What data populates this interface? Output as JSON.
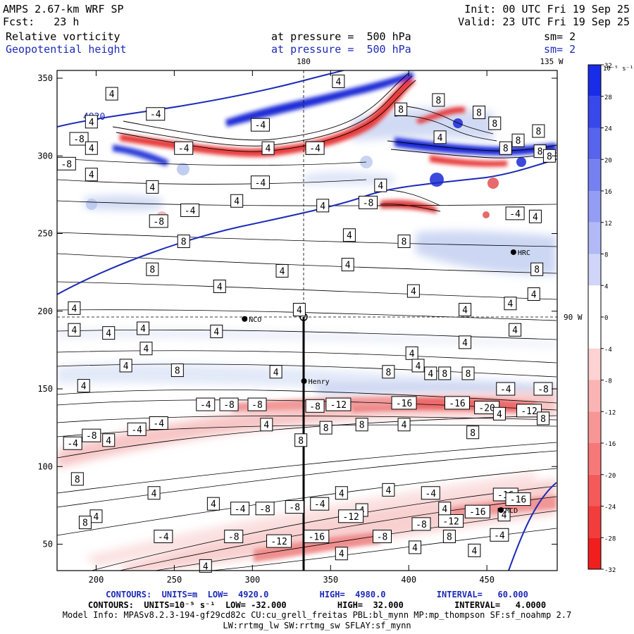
{
  "header": {
    "model": "AMPS 2.67-km WRF SP",
    "init": "Init: 00 UTC Fri 19 Sep 25",
    "fcst": "Fcst:   23 h",
    "valid": "Valid: 23 UTC Fri 19 Sep 25",
    "field1": "Relative vorticity",
    "field1_level": "at pressure =  500 hPa",
    "field1_sm": "sm= 2",
    "field2": "Geopotential height",
    "field2_level": "at pressure =  500 hPa",
    "field2_sm": "sm= 2"
  },
  "footer": {
    "contours1": "CONTOURS:  UNITS=m  LOW=  4920.0          HIGH=  4980.0          INTERVAL=   60.000",
    "contours2": "CONTOURS:  UNITS=10⁻⁵ s⁻¹  LOW= -32.000          HIGH=  32.000          INTERVAL=   4.0000",
    "model_info": "Model Info: MPASv8.2.3-194-gf29cd82c CU:cu_grell_freitas PBL:bl_mynn MP:mp_thompson SF:sf_noahmp 2.7",
    "model_info2": "LW:rrtmg_lw SW:rrtmg_sw SFLAY:sf_mynn"
  },
  "colorbar": {
    "unit": "10⁻⁵ s⁻¹",
    "ticks": [
      "32",
      "28",
      "24",
      "20",
      "16",
      "12",
      "8",
      "4",
      "0",
      "-4",
      "-8",
      "-12",
      "-16",
      "-20",
      "-24",
      "-28",
      "-32"
    ]
  },
  "chart_data": {
    "type": "heatmap",
    "title": "Relative vorticity / Geopotential height at 500 hPa",
    "x_ticks": [
      200,
      250,
      300,
      350,
      400,
      450
    ],
    "y_ticks": [
      50,
      100,
      150,
      200,
      250,
      300,
      350
    ],
    "xlim": [
      175,
      495
    ],
    "ylim": [
      33,
      355
    ],
    "top_labels": [
      "180",
      "135 W"
    ],
    "right_label": "90 W",
    "stations": [
      {
        "name": "NCO",
        "x": 295,
        "y": 195
      },
      {
        "name": "Henry",
        "x": 333,
        "y": 155
      },
      {
        "name": "HRC",
        "x": 467,
        "y": 238
      },
      {
        "name": "MCD",
        "x": 459,
        "y": 72
      }
    ],
    "height_contours": [
      {
        "value": 4920,
        "label": "4920"
      },
      {
        "value": 4980,
        "label": ""
      }
    ],
    "vorticity_labels": [
      {
        "v": "4",
        "x": 210,
        "y": 340
      },
      {
        "v": "-4",
        "x": 238,
        "y": 327
      },
      {
        "v": "4",
        "x": 197,
        "y": 322
      },
      {
        "v": "-8",
        "x": 189,
        "y": 311
      },
      {
        "v": "4",
        "x": 197,
        "y": 305
      },
      {
        "v": "-4",
        "x": 256,
        "y": 305
      },
      {
        "v": "-8",
        "x": 181,
        "y": 295
      },
      {
        "v": "4",
        "x": 197,
        "y": 288
      },
      {
        "v": "4",
        "x": 236,
        "y": 280
      },
      {
        "v": "-4",
        "x": 305,
        "y": 320
      },
      {
        "v": "4",
        "x": 310,
        "y": 305
      },
      {
        "v": "4",
        "x": 355,
        "y": 348
      },
      {
        "v": "4",
        "x": 338,
        "y": 305
      },
      {
        "v": "-4",
        "x": 340,
        "y": 305
      },
      {
        "v": "-4",
        "x": 305,
        "y": 283
      },
      {
        "v": "4",
        "x": 290,
        "y": 271
      },
      {
        "v": "-4",
        "x": 260,
        "y": 265
      },
      {
        "v": "-8",
        "x": 240,
        "y": 258
      },
      {
        "v": "8",
        "x": 419,
        "y": 336
      },
      {
        "v": "8",
        "x": 395,
        "y": 330
      },
      {
        "v": "8",
        "x": 445,
        "y": 328
      },
      {
        "v": "4",
        "x": 420,
        "y": 312
      },
      {
        "v": "4",
        "x": 345,
        "y": 268
      },
      {
        "v": "4",
        "x": 382,
        "y": 281
      },
      {
        "v": "8",
        "x": 455,
        "y": 321
      },
      {
        "v": "8",
        "x": 483,
        "y": 316
      },
      {
        "v": "8",
        "x": 462,
        "y": 305
      },
      {
        "v": "8",
        "x": 470,
        "y": 310
      },
      {
        "v": "8",
        "x": 484,
        "y": 303
      },
      {
        "v": "8",
        "x": 490,
        "y": 300
      },
      {
        "v": "-8",
        "x": 374,
        "y": 270
      },
      {
        "v": "4",
        "x": 481,
        "y": 261
      },
      {
        "v": "-4",
        "x": 468,
        "y": 263
      },
      {
        "v": "4",
        "x": 362,
        "y": 249
      },
      {
        "v": "8",
        "x": 397,
        "y": 245
      },
      {
        "v": "8",
        "x": 256,
        "y": 245
      },
      {
        "v": "8",
        "x": 236,
        "y": 227
      },
      {
        "v": "4",
        "x": 319,
        "y": 226
      },
      {
        "v": "4",
        "x": 361,
        "y": 230
      },
      {
        "v": "8",
        "x": 482,
        "y": 227
      },
      {
        "v": "4",
        "x": 279,
        "y": 216
      },
      {
        "v": "4",
        "x": 403,
        "y": 213
      },
      {
        "v": "4",
        "x": 480,
        "y": 211
      },
      {
        "v": "8",
        "x": 503,
        "y": 214
      },
      {
        "v": "4",
        "x": 465,
        "y": 205
      },
      {
        "v": "4",
        "x": 186,
        "y": 202
      },
      {
        "v": "4",
        "x": 330,
        "y": 201
      },
      {
        "v": "4",
        "x": 436,
        "y": 201
      },
      {
        "v": "4",
        "x": 498,
        "y": 199
      },
      {
        "v": "4",
        "x": 186,
        "y": 188
      },
      {
        "v": "4",
        "x": 208,
        "y": 186
      },
      {
        "v": "4",
        "x": 230,
        "y": 189
      },
      {
        "v": "4",
        "x": 277,
        "y": 187
      },
      {
        "v": "4",
        "x": 468,
        "y": 188
      },
      {
        "v": "4",
        "x": 436,
        "y": 180
      },
      {
        "v": "4",
        "x": 232,
        "y": 176
      },
      {
        "v": "4",
        "x": 402,
        "y": 173
      },
      {
        "v": "4",
        "x": 219,
        "y": 165
      },
      {
        "v": "8",
        "x": 252,
        "y": 162
      },
      {
        "v": "4",
        "x": 315,
        "y": 161
      },
      {
        "v": "4",
        "x": 406,
        "y": 165
      },
      {
        "v": "8",
        "x": 423,
        "y": 160
      },
      {
        "v": "8",
        "x": 387,
        "y": 161
      },
      {
        "v": "4",
        "x": 414,
        "y": 160
      },
      {
        "v": "8",
        "x": 438,
        "y": 160
      },
      {
        "v": "4",
        "x": 192,
        "y": 152
      },
      {
        "v": "-4",
        "x": 462,
        "y": 150
      },
      {
        "v": "-8",
        "x": 486,
        "y": 150
      },
      {
        "v": "-4",
        "x": 270,
        "y": 140
      },
      {
        "v": "-8",
        "x": 285,
        "y": 140
      },
      {
        "v": "-8",
        "x": 303,
        "y": 140
      },
      {
        "v": "-8",
        "x": 340,
        "y": 139
      },
      {
        "v": "-12",
        "x": 355,
        "y": 140
      },
      {
        "v": "-16",
        "x": 397,
        "y": 141
      },
      {
        "v": "-16",
        "x": 431,
        "y": 141
      },
      {
        "v": "-20",
        "x": 450,
        "y": 138
      },
      {
        "v": "-12",
        "x": 477,
        "y": 136
      },
      {
        "v": "4",
        "x": 458,
        "y": 134
      },
      {
        "v": "8",
        "x": 486,
        "y": 131
      },
      {
        "v": "-4",
        "x": 240,
        "y": 128
      },
      {
        "v": "-4",
        "x": 226,
        "y": 124
      },
      {
        "v": "-8",
        "x": 197,
        "y": 120
      },
      {
        "v": "4",
        "x": 208,
        "y": 117
      },
      {
        "v": "-4",
        "x": 185,
        "y": 115
      },
      {
        "v": "4",
        "x": 309,
        "y": 127
      },
      {
        "v": "8",
        "x": 347,
        "y": 125
      },
      {
        "v": "8",
        "x": 370,
        "y": 127
      },
      {
        "v": "4",
        "x": 397,
        "y": 127
      },
      {
        "v": "8",
        "x": 441,
        "y": 122
      },
      {
        "v": "8",
        "x": 331,
        "y": 117
      },
      {
        "v": "8",
        "x": 188,
        "y": 92
      },
      {
        "v": "4",
        "x": 237,
        "y": 83
      },
      {
        "v": "4",
        "x": 357,
        "y": 83
      },
      {
        "v": "4",
        "x": 387,
        "y": 85
      },
      {
        "v": "-4",
        "x": 414,
        "y": 83
      },
      {
        "v": "-16",
        "x": 462,
        "y": 82
      },
      {
        "v": "4",
        "x": 275,
        "y": 76
      },
      {
        "v": "-4",
        "x": 292,
        "y": 73
      },
      {
        "v": "-8",
        "x": 308,
        "y": 73
      },
      {
        "v": "-8",
        "x": 327,
        "y": 74
      },
      {
        "v": "-4",
        "x": 343,
        "y": 76
      },
      {
        "v": "4",
        "x": 370,
        "y": 72
      },
      {
        "v": "4",
        "x": 200,
        "y": 68
      },
      {
        "v": "8",
        "x": 193,
        "y": 64
      },
      {
        "v": "-12",
        "x": 363,
        "y": 68
      },
      {
        "v": "-12",
        "x": 427,
        "y": 65
      },
      {
        "v": "-16",
        "x": 444,
        "y": 71
      },
      {
        "v": "4",
        "x": 461,
        "y": 69
      },
      {
        "v": "-4",
        "x": 243,
        "y": 55
      },
      {
        "v": "-8",
        "x": 288,
        "y": 55
      },
      {
        "v": "-12",
        "x": 317,
        "y": 52
      },
      {
        "v": "-16",
        "x": 341,
        "y": 55
      },
      {
        "v": "-8",
        "x": 383,
        "y": 55
      },
      {
        "v": "4",
        "x": 357,
        "y": 44
      },
      {
        "v": "4",
        "x": 404,
        "y": 48
      },
      {
        "v": "4",
        "x": 442,
        "y": 46
      },
      {
        "v": "-4",
        "x": 458,
        "y": 56
      },
      {
        "v": "8",
        "x": 426,
        "y": 55
      },
      {
        "v": "-8",
        "x": 408,
        "y": 63
      },
      {
        "v": "4",
        "x": 423,
        "y": 73
      },
      {
        "v": "-16",
        "x": 470,
        "y": 79
      },
      {
        "v": "4",
        "x": 270,
        "y": 36
      }
    ]
  }
}
